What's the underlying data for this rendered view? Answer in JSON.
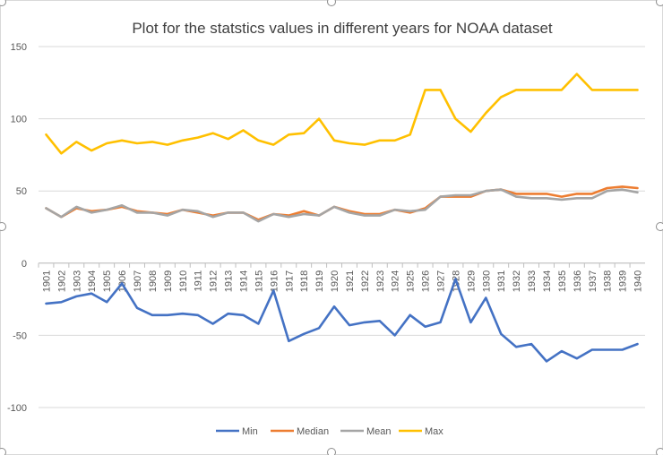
{
  "chart_data": {
    "type": "line",
    "title": "Plot for the statstics values in different years for NOAA dataset",
    "xlabel": "",
    "ylabel": "",
    "ylim": [
      -100,
      150
    ],
    "yticks": [
      -100,
      -50,
      0,
      50,
      100,
      150
    ],
    "grid": true,
    "legend_position": "bottom",
    "categories": [
      "1901",
      "1902",
      "1903",
      "1904",
      "1905",
      "1906",
      "1907",
      "1908",
      "1909",
      "1910",
      "1911",
      "1912",
      "1913",
      "1914",
      "1915",
      "1916",
      "1917",
      "1918",
      "1919",
      "1920",
      "1921",
      "1922",
      "1923",
      "1924",
      "1925",
      "1926",
      "1927",
      "1928",
      "1929",
      "1930",
      "1931",
      "1932",
      "1933",
      "1934",
      "1935",
      "1936",
      "1937",
      "1938",
      "1939",
      "1940"
    ],
    "series": [
      {
        "name": "Min",
        "color": "#4472C4",
        "values": [
          -28,
          -27,
          -23,
          -21,
          -27,
          -14,
          -31,
          -36,
          -36,
          -35,
          -36,
          -42,
          -35,
          -36,
          -42,
          -19,
          -54,
          -49,
          -45,
          -30,
          -43,
          -41,
          -40,
          -50,
          -36,
          -44,
          -41,
          -11,
          -41,
          -24,
          -49,
          -58,
          -56,
          -68,
          -61,
          -66,
          -60,
          -60,
          -60,
          -56
        ]
      },
      {
        "name": "Median",
        "color": "#ED7D31",
        "values": [
          38,
          32,
          38,
          36,
          37,
          39,
          36,
          35,
          34,
          37,
          35,
          33,
          35,
          35,
          30,
          34,
          33,
          36,
          33,
          39,
          36,
          34,
          34,
          37,
          35,
          38,
          46,
          46,
          46,
          50,
          51,
          48,
          48,
          48,
          46,
          48,
          48,
          52,
          53,
          52
        ]
      },
      {
        "name": "Mean",
        "color": "#A5A5A5",
        "values": [
          38,
          32,
          39,
          35,
          37,
          40,
          35,
          35,
          33,
          37,
          36,
          32,
          35,
          35,
          29,
          34,
          32,
          34,
          33,
          39,
          35,
          33,
          33,
          37,
          36,
          37,
          46,
          47,
          47,
          50,
          51,
          46,
          45,
          45,
          44,
          45,
          45,
          50,
          51,
          49
        ]
      },
      {
        "name": "Max",
        "color": "#FFC000",
        "values": [
          89,
          76,
          84,
          78,
          83,
          85,
          83,
          84,
          82,
          85,
          87,
          90,
          86,
          92,
          85,
          82,
          89,
          90,
          100,
          85,
          83,
          82,
          85,
          85,
          89,
          120,
          120,
          100,
          91,
          104,
          115,
          120,
          120,
          120,
          120,
          131,
          120,
          120,
          120,
          120
        ]
      }
    ]
  }
}
